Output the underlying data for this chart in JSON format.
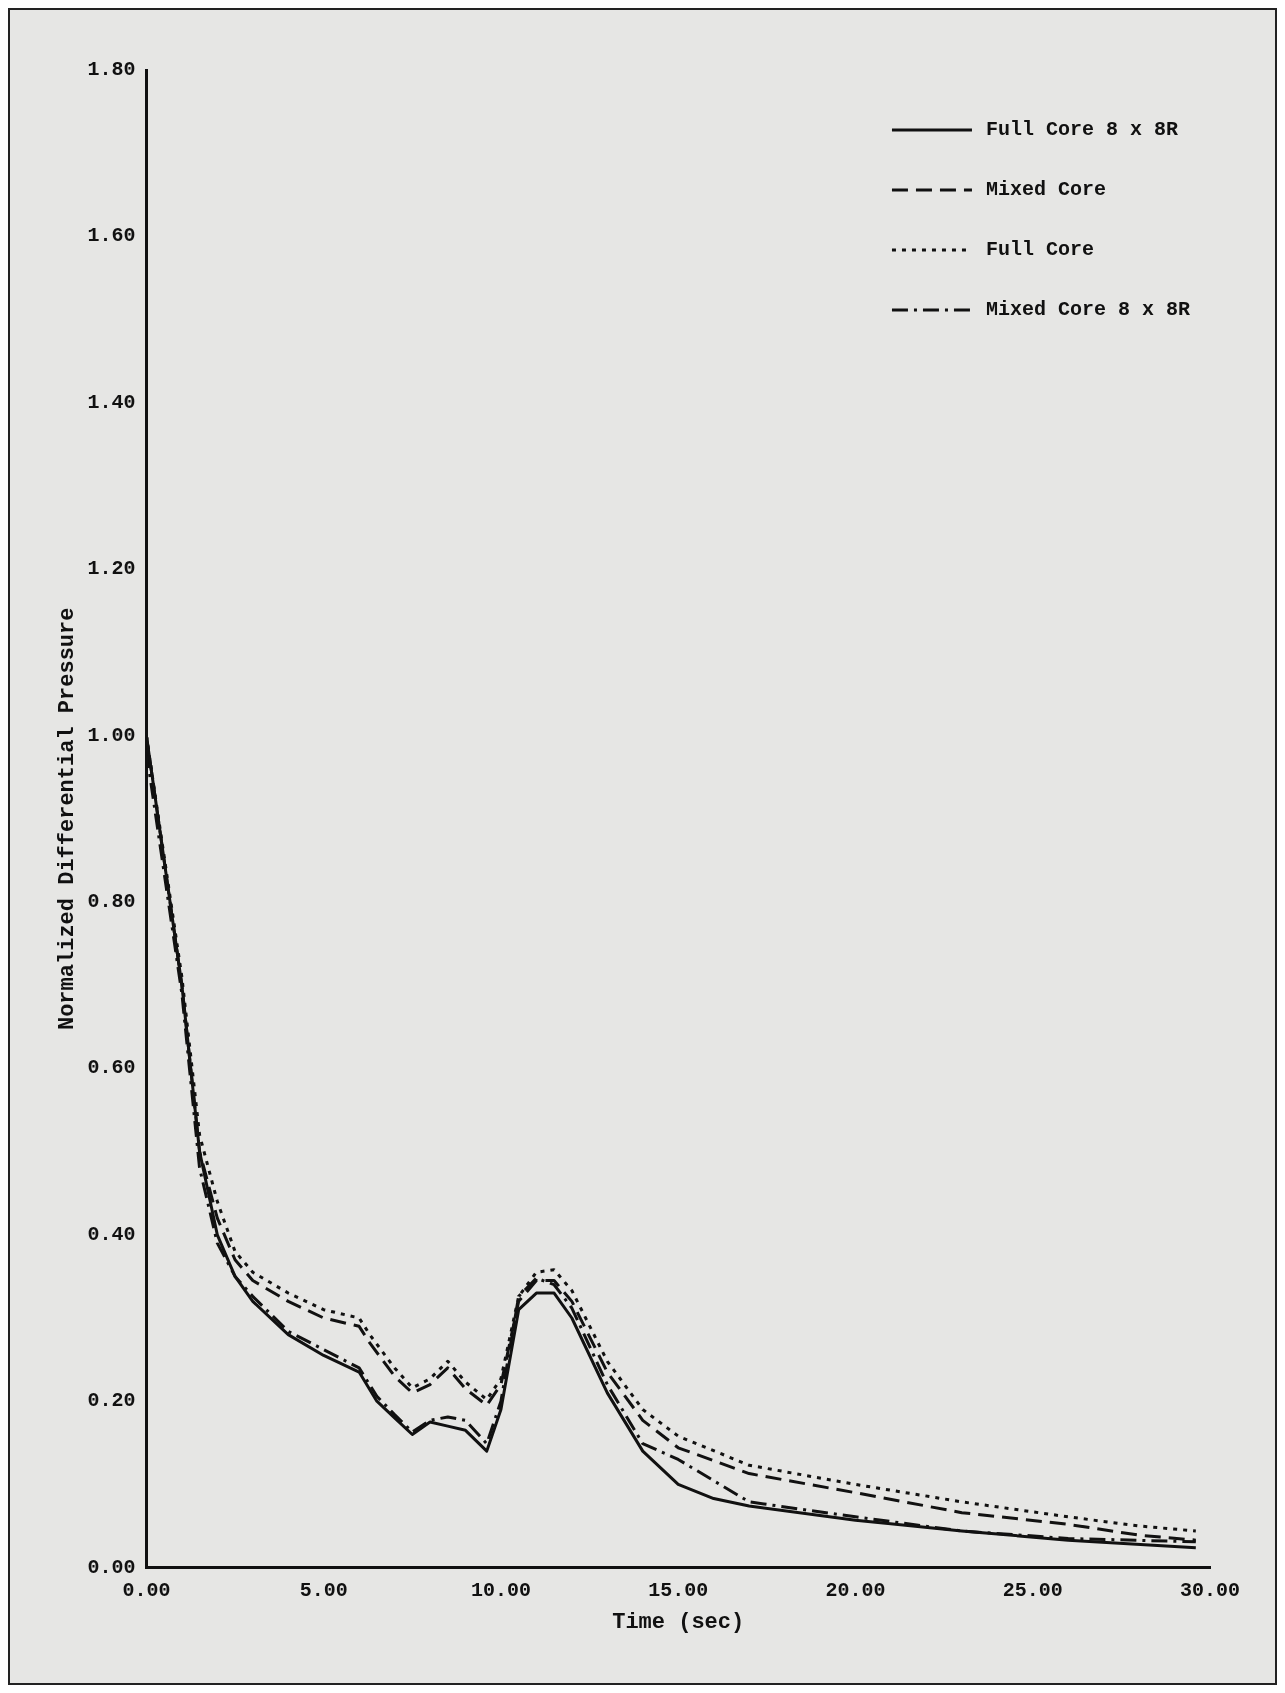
{
  "chart_data": {
    "type": "line",
    "xlabel": "Time (sec)",
    "ylabel": "Normalized Differential Pressure",
    "xlim": [
      0,
      30
    ],
    "ylim": [
      0,
      1.8
    ],
    "xticks": [
      {
        "value": 0,
        "label": "0.00"
      },
      {
        "value": 5,
        "label": "5.00"
      },
      {
        "value": 10,
        "label": "10.00"
      },
      {
        "value": 15,
        "label": "15.00"
      },
      {
        "value": 20,
        "label": "20.00"
      },
      {
        "value": 25,
        "label": "25.00"
      },
      {
        "value": 30,
        "label": "30.00"
      }
    ],
    "yticks": [
      {
        "value": 0,
        "label": "0.00"
      },
      {
        "value": 0.2,
        "label": "0.20"
      },
      {
        "value": 0.4,
        "label": "0.40"
      },
      {
        "value": 0.6,
        "label": "0.60"
      },
      {
        "value": 0.8,
        "label": "0.80"
      },
      {
        "value": 1,
        "label": "1.00"
      },
      {
        "value": 1.2,
        "label": "1.20"
      },
      {
        "value": 1.4,
        "label": "1.40"
      },
      {
        "value": 1.6,
        "label": "1.60"
      },
      {
        "value": 1.8,
        "label": "1.80"
      }
    ],
    "legend": "top right",
    "grid": false,
    "marker": "none",
    "series": [
      {
        "name": "Full Core 8 x 8R",
        "color": "#111111",
        "line_style": "solid",
        "x": [
          0,
          1,
          1.5,
          2,
          2.5,
          3,
          4,
          5,
          6,
          6.5,
          7,
          7.5,
          8,
          8.5,
          9,
          9.6,
          10,
          10.5,
          11,
          11.5,
          12,
          13,
          14,
          15,
          16,
          17,
          20,
          23,
          26,
          29.6
        ],
        "values": [
          1.0,
          0.7,
          0.5,
          0.4,
          0.35,
          0.32,
          0.28,
          0.255,
          0.235,
          0.2,
          0.18,
          0.16,
          0.175,
          0.17,
          0.165,
          0.14,
          0.19,
          0.31,
          0.33,
          0.33,
          0.3,
          0.21,
          0.14,
          0.1,
          0.083,
          0.074,
          0.057,
          0.044,
          0.033,
          0.024
        ]
      },
      {
        "name": "Mixed Core",
        "color": "#111111",
        "line_style": "dashed",
        "x": [
          0,
          1,
          1.5,
          2,
          2.5,
          3,
          4,
          5,
          6,
          6.3,
          7,
          7.5,
          8,
          8.5,
          9,
          9.6,
          10,
          10.5,
          11,
          11.5,
          12,
          13,
          14,
          15,
          17,
          20,
          23,
          26,
          28,
          29.6
        ],
        "values": [
          1.0,
          0.7,
          0.5,
          0.42,
          0.37,
          0.345,
          0.32,
          0.3,
          0.29,
          0.27,
          0.23,
          0.21,
          0.22,
          0.24,
          0.215,
          0.195,
          0.22,
          0.32,
          0.345,
          0.345,
          0.32,
          0.235,
          0.177,
          0.144,
          0.113,
          0.09,
          0.066,
          0.052,
          0.039,
          0.033
        ]
      },
      {
        "name": "Full Core",
        "color": "#111111",
        "line_style": "dotted",
        "x": [
          0,
          1,
          1.5,
          2,
          2.5,
          3,
          4,
          5,
          6,
          6.3,
          7,
          7.5,
          8,
          8.5,
          9,
          9.6,
          10,
          10.5,
          11,
          11.5,
          12,
          13,
          14,
          15,
          17,
          20,
          23,
          26,
          28,
          29.6
        ],
        "values": [
          1.0,
          0.71,
          0.52,
          0.44,
          0.38,
          0.355,
          0.33,
          0.31,
          0.3,
          0.28,
          0.24,
          0.216,
          0.227,
          0.248,
          0.223,
          0.202,
          0.227,
          0.326,
          0.355,
          0.358,
          0.333,
          0.248,
          0.19,
          0.158,
          0.123,
          0.1,
          0.079,
          0.061,
          0.05,
          0.044
        ]
      },
      {
        "name": "Mixed Core 8 x 8R",
        "color": "#111111",
        "line_style": "dashdot",
        "x": [
          0,
          1,
          1.5,
          2,
          2.5,
          3,
          4,
          5,
          6,
          6.5,
          7,
          7.5,
          8,
          8.5,
          9,
          9.6,
          10,
          10.5,
          11,
          11.5,
          12,
          13,
          14,
          15,
          17,
          20,
          23,
          26,
          29.6
        ],
        "values": [
          0.98,
          0.69,
          0.48,
          0.39,
          0.35,
          0.326,
          0.284,
          0.262,
          0.24,
          0.206,
          0.184,
          0.163,
          0.177,
          0.181,
          0.177,
          0.149,
          0.2,
          0.326,
          0.348,
          0.34,
          0.312,
          0.22,
          0.149,
          0.13,
          0.079,
          0.061,
          0.044,
          0.035,
          0.031
        ]
      }
    ]
  }
}
